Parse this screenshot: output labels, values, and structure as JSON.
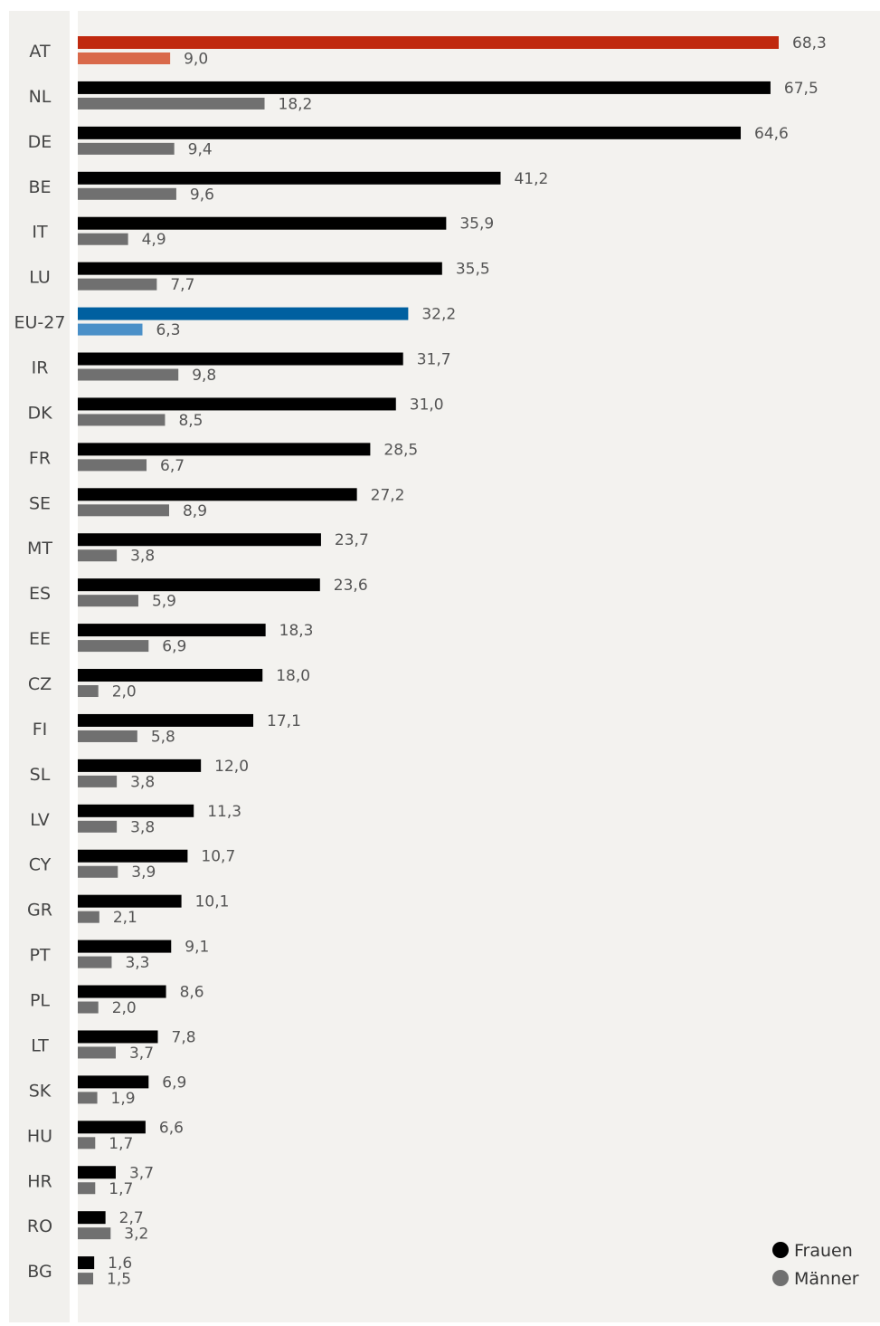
{
  "chart_data": {
    "type": "bar",
    "orientation": "horizontal",
    "categories": [
      "AT",
      "NL",
      "DE",
      "BE",
      "IT",
      "LU",
      "EU-27",
      "IR",
      "DK",
      "FR",
      "SE",
      "MT",
      "ES",
      "EE",
      "CZ",
      "FI",
      "SL",
      "LV",
      "CY",
      "GR",
      "PT",
      "PL",
      "LT",
      "SK",
      "HU",
      "HR",
      "RO",
      "BG"
    ],
    "series": [
      {
        "name": "Frauen",
        "color": "#000000",
        "values": [
          68.3,
          67.5,
          64.6,
          41.2,
          35.9,
          35.5,
          32.2,
          31.7,
          31.0,
          28.5,
          27.2,
          23.7,
          23.6,
          18.3,
          18.0,
          17.1,
          12.0,
          11.3,
          10.7,
          10.1,
          9.1,
          8.6,
          7.8,
          6.9,
          6.6,
          3.7,
          2.7,
          1.6
        ],
        "labels": [
          "68,3",
          "67,5",
          "64,6",
          "41,2",
          "35,9",
          "35,5",
          "32,2",
          "31,7",
          "31,0",
          "28,5",
          "27,2",
          "23,7",
          "23,6",
          "18,3",
          "18,0",
          "17,1",
          "12,0",
          "11,3",
          "10,7",
          "10,1",
          "9,1",
          "8,6",
          "7,8",
          "6,9",
          "6,6",
          "3,7",
          "2,7",
          "1,6"
        ]
      },
      {
        "name": "Männer",
        "color": "#707070",
        "values": [
          9.0,
          18.2,
          9.4,
          9.6,
          4.9,
          7.7,
          6.3,
          9.8,
          8.5,
          6.7,
          8.9,
          3.8,
          5.9,
          6.9,
          2.0,
          5.8,
          3.8,
          3.8,
          3.9,
          2.1,
          3.3,
          2.0,
          3.7,
          1.9,
          1.7,
          1.7,
          3.2,
          1.5
        ],
        "labels": [
          "9,0",
          "18,2",
          "9,4",
          "9,6",
          "4,9",
          "7,7",
          "6,3",
          "9,8",
          "8,5",
          "6,7",
          "8,9",
          "3,8",
          "5,9",
          "6,9",
          "2,0",
          "5,8",
          "3,8",
          "3,8",
          "3,9",
          "2,1",
          "3,3",
          "2,0",
          "3,7",
          "1,9",
          "1,7",
          "1,7",
          "3,2",
          "1,5"
        ]
      }
    ],
    "highlights": {
      "AT": {
        "Frauen": "#c0290f",
        "Männer": "#d9694a"
      },
      "EU-27": {
        "Frauen": "#0060a0",
        "Männer": "#4a90c8"
      }
    },
    "xlim": [
      0,
      68.3
    ],
    "grid": false,
    "legend": "bottom-right"
  }
}
